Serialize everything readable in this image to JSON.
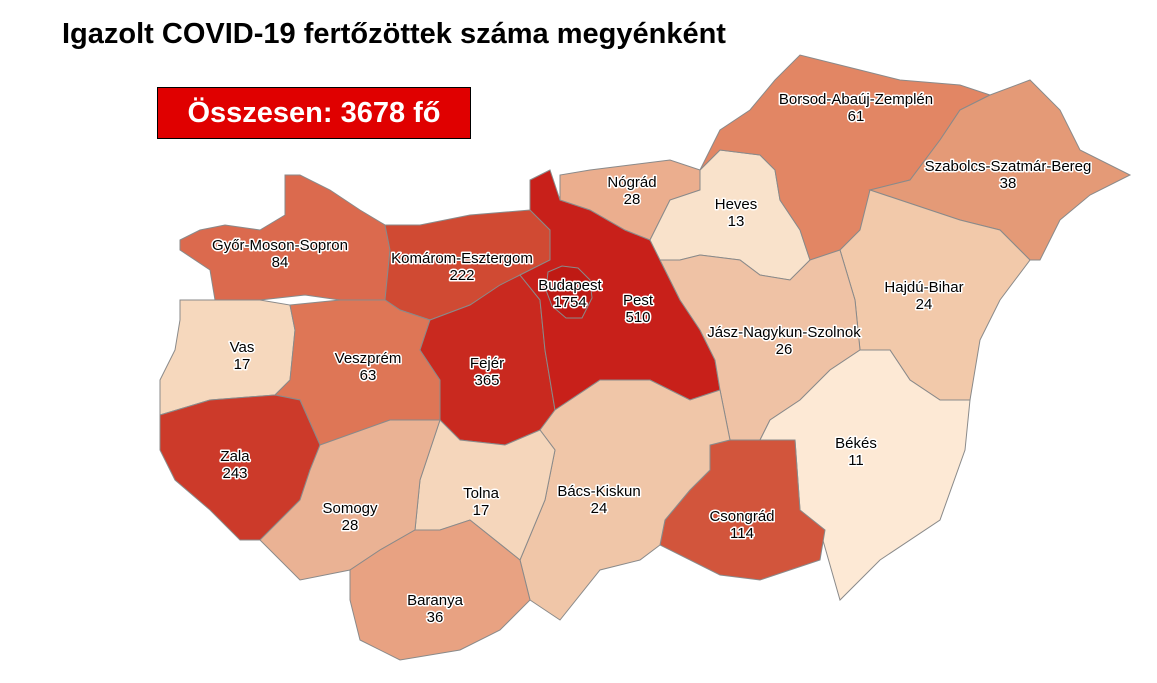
{
  "title": "Igazolt COVID-19 fertőzöttek száma megyénként",
  "total_label": "Összesen: 3678 fő",
  "counties": [
    {
      "name": "Győr-Moson-Sopron",
      "value": "84",
      "color": "#db6a4e"
    },
    {
      "name": "Komárom-Esztergom",
      "value": "222",
      "color": "#d04a33"
    },
    {
      "name": "Vas",
      "value": "17",
      "color": "#f6d8bd"
    },
    {
      "name": "Veszprém",
      "value": "63",
      "color": "#de7656"
    },
    {
      "name": "Zala",
      "value": "243",
      "color": "#cc3a2a"
    },
    {
      "name": "Fejér",
      "value": "365",
      "color": "#c9291f"
    },
    {
      "name": "Pest",
      "value": "510",
      "color": "#c8201a"
    },
    {
      "name": "Budapest",
      "value": "1754",
      "color": "#bf1a14"
    },
    {
      "name": "Nógrád",
      "value": "28",
      "color": "#ebae8e"
    },
    {
      "name": "Heves",
      "value": "13",
      "color": "#f9e2cb"
    },
    {
      "name": "Borsod-Abaúj-Zemplén",
      "value": "61",
      "color": "#e28664"
    },
    {
      "name": "Szabolcs-Szatmár-Bereg",
      "value": "38",
      "color": "#e49a77"
    },
    {
      "name": "Hajdú-Bihar",
      "value": "24",
      "color": "#f2c9aa"
    },
    {
      "name": "Jász-Nagykun-Szolnok",
      "value": "26",
      "color": "#efc2a5"
    },
    {
      "name": "Békés",
      "value": "11",
      "color": "#fde9d5"
    },
    {
      "name": "Csongrád",
      "value": "114",
      "color": "#d2553c"
    },
    {
      "name": "Bács-Kiskun",
      "value": "24",
      "color": "#f0c6a8"
    },
    {
      "name": "Tolna",
      "value": "17",
      "color": "#f5d6bb"
    },
    {
      "name": "Somogy",
      "value": "28",
      "color": "#eab294"
    },
    {
      "name": "Baranya",
      "value": "36",
      "color": "#e8a282"
    }
  ]
}
